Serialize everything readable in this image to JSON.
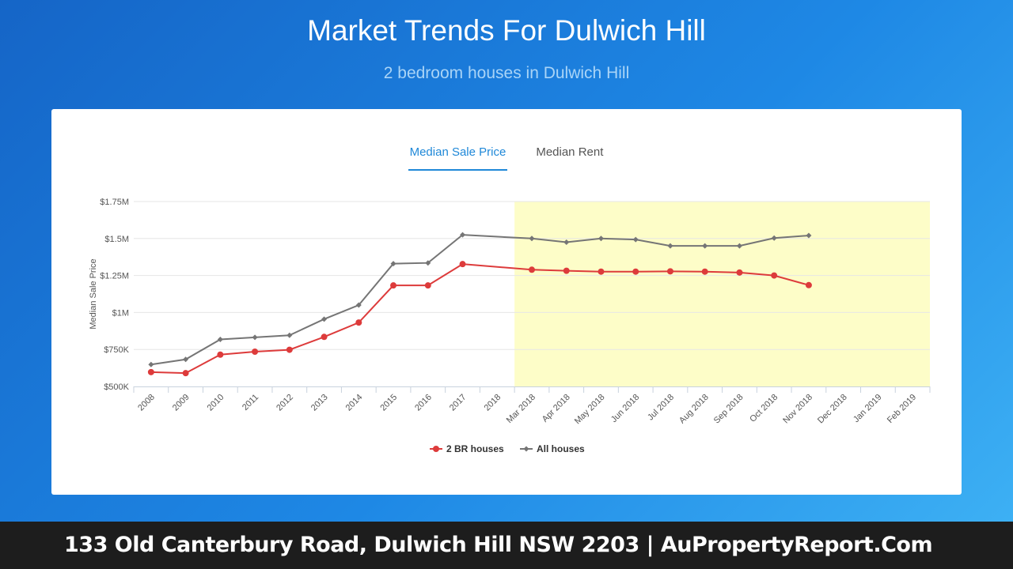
{
  "header": {
    "title": "Market Trends For Dulwich Hill",
    "subtitle": "2 bedroom houses in Dulwich Hill"
  },
  "tabs": [
    {
      "label": "Median Sale Price",
      "active": true
    },
    {
      "label": "Median Rent",
      "active": false
    }
  ],
  "footer": {
    "text": "133 Old Canterbury Road, Dulwich Hill NSW 2203 | AuPropertyReport.Com"
  },
  "colors": {
    "series_2br": "#dd3b3b",
    "series_all": "#757575",
    "highlight_band": "#fdfdc8",
    "accent": "#1f88d8"
  },
  "chart_data": {
    "type": "line",
    "ylabel": "Median Sale Price",
    "ylim": [
      500000,
      1750000
    ],
    "yticks": [
      {
        "value": 500000,
        "label": "$500K"
      },
      {
        "value": 750000,
        "label": "$750K"
      },
      {
        "value": 1000000,
        "label": "$1M"
      },
      {
        "value": 1250000,
        "label": "$1.25M"
      },
      {
        "value": 1500000,
        "label": "$1.5M"
      },
      {
        "value": 1750000,
        "label": "$1.75M"
      }
    ],
    "categories": [
      "2008",
      "2009",
      "2010",
      "2011",
      "2012",
      "2013",
      "2014",
      "2015",
      "2016",
      "2017",
      "2018",
      "Mar 2018",
      "Apr 2018",
      "May 2018",
      "Jun 2018",
      "Jul 2018",
      "Aug 2018",
      "Sep 2018",
      "Oct 2018",
      "Nov 2018",
      "Dec 2018",
      "Jan 2019",
      "Feb 2019"
    ],
    "highlight_from": "Mar 2018",
    "legend_position": "bottom",
    "grid": true,
    "series": [
      {
        "name": "2 BR houses",
        "color": "#dd3b3b",
        "values": [
          597000,
          590000,
          715000,
          735000,
          748000,
          835000,
          932000,
          1183000,
          1183000,
          1327000,
          null,
          1289000,
          1282000,
          1276000,
          1276000,
          1278000,
          1276000,
          1270000,
          1250000,
          1185000,
          null,
          null,
          null
        ]
      },
      {
        "name": "All houses",
        "color": "#757575",
        "values": [
          648000,
          683000,
          818000,
          832000,
          846000,
          955000,
          1050000,
          1330000,
          1335000,
          1525000,
          null,
          1500000,
          1475000,
          1500000,
          1493000,
          1450000,
          1450000,
          1450000,
          1503000,
          1520000,
          null,
          null,
          null
        ]
      }
    ]
  }
}
